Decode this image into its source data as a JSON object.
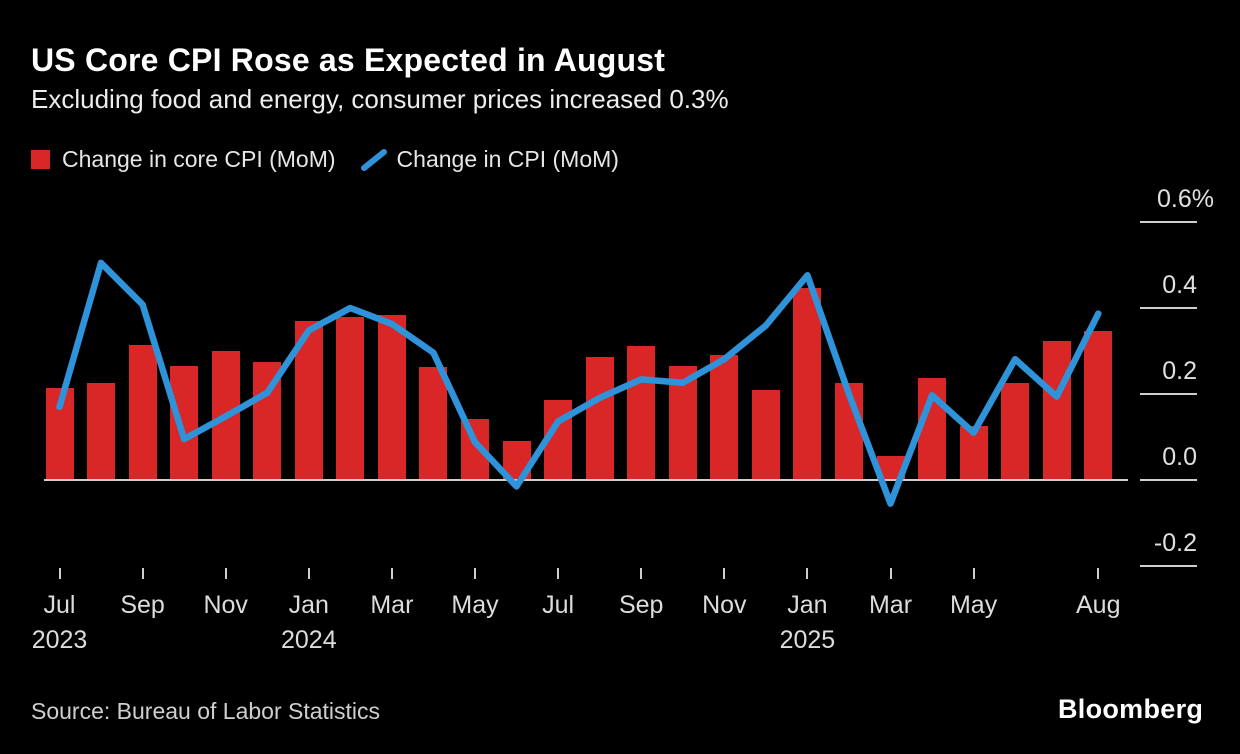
{
  "header": {
    "title": "US Core CPI Rose as Expected in August",
    "subtitle": "Excluding food and energy, consumer prices increased 0.3%"
  },
  "legend": {
    "items": [
      {
        "label": "Change in core CPI (MoM)",
        "marker": "square",
        "color": "#d92626"
      },
      {
        "label": "Change in CPI (MoM)",
        "marker": "slash",
        "color": "#2e93d9"
      }
    ]
  },
  "colors": {
    "background": "#000000",
    "bar": "#d92626",
    "line": "#2e93d9",
    "axis": "#cfcfcf",
    "label_text": "#e0e0e0"
  },
  "chart_data": {
    "type": "bar+line",
    "title": "US Core CPI Rose as Expected in August",
    "subtitle": "Excluding food and energy, consumer prices increased 0.3%",
    "unit": "%",
    "grid": false,
    "legend_position": "top-left",
    "ylim": [
      -0.3,
      0.7
    ],
    "x": [
      "Jul 2023",
      "Aug 2023",
      "Sep 2023",
      "Oct 2023",
      "Nov 2023",
      "Dec 2023",
      "Jan 2024",
      "Feb 2024",
      "Mar 2024",
      "Apr 2024",
      "May 2024",
      "Jun 2024",
      "Jul 2024",
      "Aug 2024",
      "Sep 2024",
      "Oct 2024",
      "Nov 2024",
      "Dec 2024",
      "Jan 2025",
      "Feb 2025",
      "Mar 2025",
      "Apr 2025",
      "May 2025",
      "Jun 2025",
      "Jul 2025",
      "Aug 2025"
    ],
    "series": [
      {
        "name": "Change in core CPI (MoM)",
        "type": "bar",
        "color": "#d92626",
        "values": [
          0.215,
          0.225,
          0.315,
          0.265,
          0.3,
          0.275,
          0.37,
          0.38,
          0.383,
          0.263,
          0.143,
          0.09,
          0.186,
          0.285,
          0.312,
          0.266,
          0.29,
          0.209,
          0.446,
          0.225,
          0.055,
          0.238,
          0.125,
          0.226,
          0.324,
          0.347
        ]
      },
      {
        "name": "Change in CPI (MoM)",
        "type": "line",
        "color": "#2e93d9",
        "values": [
          0.17,
          0.505,
          0.408,
          0.095,
          0.148,
          0.203,
          0.348,
          0.4,
          0.363,
          0.296,
          0.088,
          -0.015,
          0.136,
          0.191,
          0.234,
          0.226,
          0.281,
          0.359,
          0.476,
          0.2,
          -0.055,
          0.197,
          0.11,
          0.281,
          0.194,
          0.387
        ]
      }
    ],
    "y_axis": {
      "ticks": [
        {
          "label": "0.6%",
          "value": 0.6
        },
        {
          "label": "0.4",
          "value": 0.4
        },
        {
          "label": "0.2",
          "value": 0.2
        },
        {
          "label": "0.0",
          "value": 0.0
        },
        {
          "label": "-0.2",
          "value": -0.2
        }
      ]
    },
    "x_axis": {
      "ticks": [
        {
          "index": 0,
          "month": "Jul",
          "year": "2023"
        },
        {
          "index": 2,
          "month": "Sep"
        },
        {
          "index": 4,
          "month": "Nov"
        },
        {
          "index": 6,
          "month": "Jan",
          "year": "2024"
        },
        {
          "index": 8,
          "month": "Mar"
        },
        {
          "index": 10,
          "month": "May"
        },
        {
          "index": 12,
          "month": "Jul"
        },
        {
          "index": 14,
          "month": "Sep"
        },
        {
          "index": 16,
          "month": "Nov"
        },
        {
          "index": 18,
          "month": "Jan",
          "year": "2025"
        },
        {
          "index": 20,
          "month": "Mar"
        },
        {
          "index": 22,
          "month": "May"
        },
        {
          "index": 25,
          "month": "Aug"
        }
      ]
    }
  },
  "footer": {
    "source": "Source: Bureau of Labor Statistics",
    "brand": "Bloomberg"
  }
}
